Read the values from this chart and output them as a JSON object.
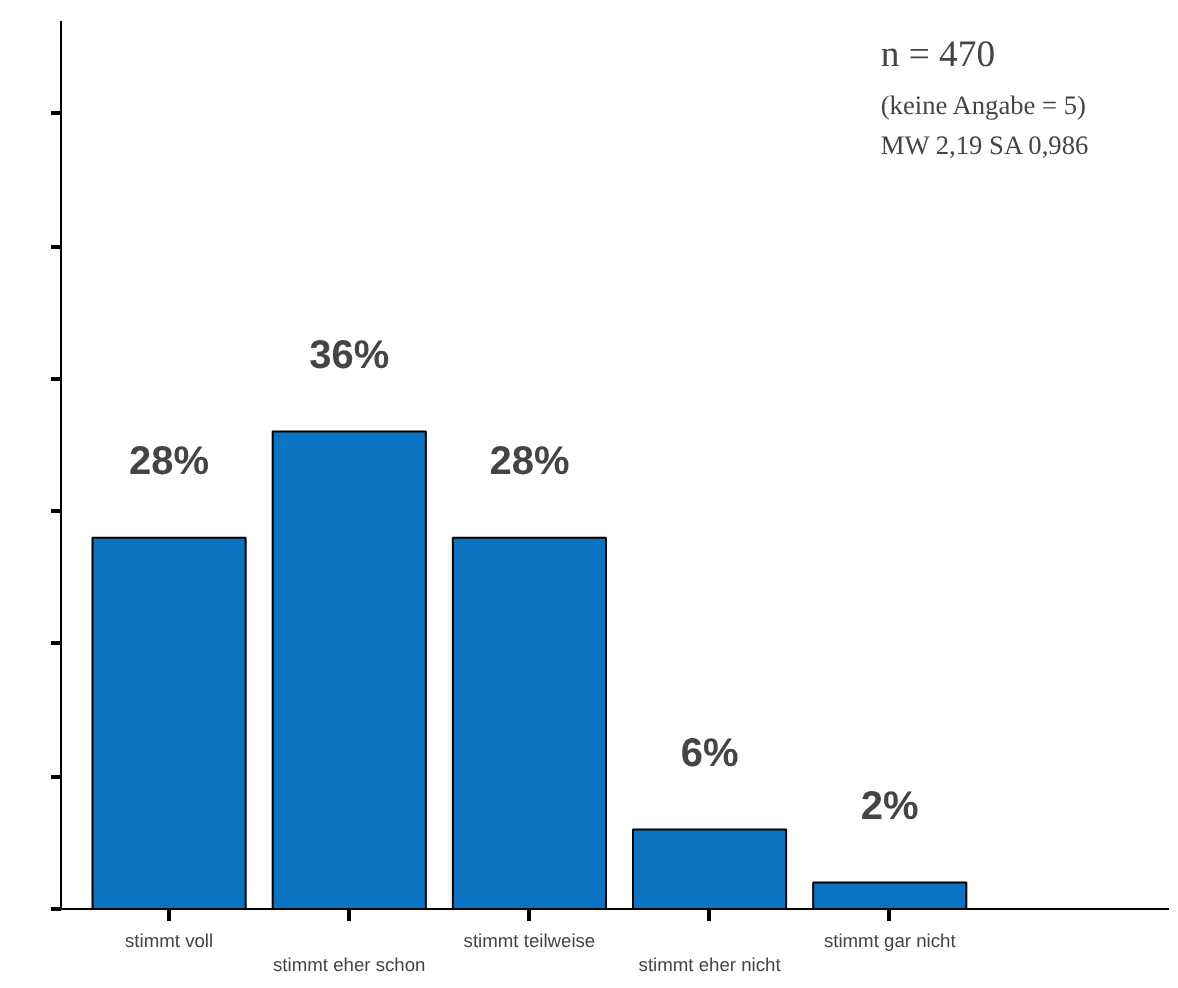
{
  "chart_data": {
    "type": "bar",
    "categories": [
      "stimmt voll",
      "stimmt eher schon",
      "stimmt teilweise",
      "stimmt eher nicht",
      "stimmt gar nicht"
    ],
    "values": [
      28,
      36,
      28,
      6,
      2
    ],
    "value_labels": [
      "28%",
      "36%",
      "28%",
      "6%",
      "2%"
    ],
    "color": "#0a74c2",
    "tick_labels": "x",
    "grid": false,
    "annotations": [
      "n = 470",
      "(keine Angabe = 5)",
      "MW 2,19 SA 0,986"
    ]
  }
}
